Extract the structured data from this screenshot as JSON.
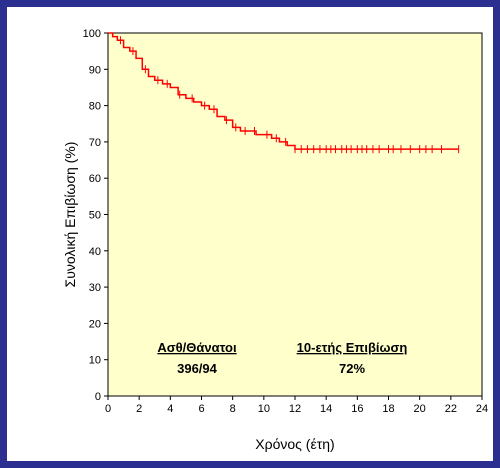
{
  "colors": {
    "frame_border": "#2b2f8f",
    "plot_background": "#ffffcc",
    "curve": "#ff0000",
    "axis": "#000000"
  },
  "chart_data": {
    "type": "line",
    "title": "",
    "xlabel": "Χρόνος (έτη)",
    "ylabel": "Συνολική Επιβίωση (%)",
    "xlim": [
      0,
      24
    ],
    "ylim": [
      0,
      100
    ],
    "xticks": [
      0,
      2,
      4,
      6,
      8,
      10,
      12,
      14,
      16,
      18,
      20,
      22,
      24
    ],
    "yticks": [
      0,
      10,
      20,
      30,
      40,
      50,
      60,
      70,
      80,
      90,
      100
    ],
    "grid": false,
    "step": true,
    "series": [
      {
        "x": [
          0,
          0.3,
          0.6,
          1.0,
          1.4,
          1.8,
          2.2,
          2.6,
          3.0,
          3.5,
          4.0,
          4.5,
          5.0,
          5.5,
          6.0,
          6.5,
          7.0,
          7.5,
          8.0,
          8.5,
          9.0,
          9.5,
          10.0,
          10.5,
          11.0,
          11.5,
          12.0,
          14.0,
          16.0,
          18.0,
          20.0,
          22.5
        ],
        "y": [
          100,
          99,
          98,
          96,
          95,
          93,
          90,
          88,
          87,
          86,
          85,
          83,
          82,
          81,
          80,
          79,
          77,
          76,
          74,
          73,
          73,
          72,
          72,
          71,
          70,
          69,
          68,
          68,
          68,
          68,
          68,
          68
        ]
      }
    ],
    "censor_marks_x": [
      0.8,
      1.6,
      2.4,
      3.2,
      3.8,
      4.6,
      5.4,
      6.2,
      6.8,
      7.6,
      8.2,
      8.8,
      9.4,
      10.2,
      10.8,
      11.4,
      12.0,
      12.4,
      12.8,
      13.2,
      13.6,
      14.0,
      14.3,
      14.6,
      15.0,
      15.3,
      15.6,
      16.0,
      16.3,
      16.6,
      17.0,
      17.4,
      18.0,
      18.3,
      18.8,
      19.4,
      20.0,
      20.4,
      20.8,
      21.4,
      22.5
    ],
    "annotations": [
      {
        "header": "Ασθ/Θάνατοι",
        "value": "396/94"
      },
      {
        "header": "10-ετής Επιβίωση",
        "value": "72%"
      }
    ]
  }
}
